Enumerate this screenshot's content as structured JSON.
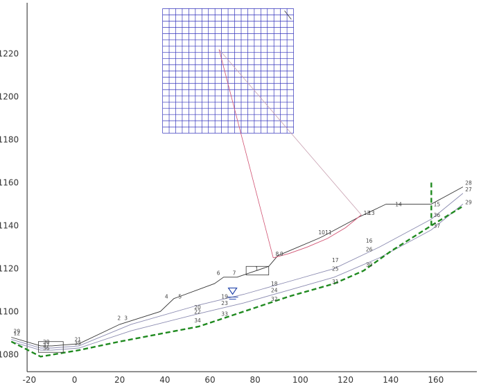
{
  "chart_data": {
    "type": "line",
    "title": "",
    "xlabel": "",
    "ylabel": "",
    "x_ticks": [
      "-20",
      "0",
      "20",
      "40",
      "60",
      "80",
      "100",
      "120",
      "140",
      "160"
    ],
    "y_ticks": [
      "1080",
      "1100",
      "1120",
      "1140",
      "1160",
      "1180",
      "1200",
      "1220"
    ],
    "xlim": [
      -33,
      180
    ],
    "ylim": [
      1063,
      1245
    ],
    "grid": false,
    "colors": {
      "ground": "#333333",
      "layer": "#8a8ab0",
      "slip": "#d05070",
      "radius": "#c8a0b0",
      "grid": "#3333bb",
      "bedrock": "#1f8a1f",
      "water": "#2244aa"
    },
    "series": [
      {
        "kind": "ground",
        "x": [
          -28,
          -15,
          -10,
          2,
          20,
          38,
          44,
          62,
          66,
          72,
          86,
          90,
          108,
          110,
          126,
          130,
          138,
          146,
          158,
          172
        ],
        "y": [
          1088,
          1084,
          1084,
          1085,
          1094,
          1100,
          1106,
          1113,
          1116,
          1116,
          1121,
          1126,
          1134,
          1135,
          1144,
          1146,
          1150,
          1150,
          1150,
          1158
        ]
      },
      {
        "kind": "layer",
        "x": [
          -28,
          -15,
          -10,
          2,
          25,
          55,
          75,
          95,
          115,
          135,
          158,
          172
        ],
        "y": [
          1087,
          1083,
          1083,
          1084,
          1094,
          1103,
          1108,
          1114,
          1120,
          1130,
          1143,
          1155
        ]
      },
      {
        "kind": "layer",
        "x": [
          -28,
          -15,
          -10,
          2,
          25,
          55,
          75,
          95,
          115,
          135,
          158,
          172
        ],
        "y": [
          1086,
          1082,
          1082,
          1083,
          1091,
          1099,
          1104,
          1110,
          1116,
          1125,
          1138,
          1150
        ]
      },
      {
        "kind": "bedrock",
        "x": [
          -28,
          -15,
          2,
          20,
          40,
          55,
          75,
          95,
          115,
          128,
          140,
          158,
          172
        ],
        "y": [
          1086,
          1079,
          1082,
          1086,
          1090,
          1093,
          1100,
          1107,
          1113,
          1119,
          1128,
          1140,
          1149
        ]
      },
      {
        "kind": "slip",
        "x": [
          88,
          95,
          103,
          112,
          120,
          127
        ],
        "y": [
          1125,
          1127,
          1130,
          1134,
          1139,
          1145
        ]
      }
    ],
    "search_grid": {
      "x": [
        39,
        97
      ],
      "y": [
        1183,
        1241
      ],
      "cols": 20,
      "rows": 20
    },
    "center": [
      64,
      1222
    ],
    "labels": [
      {
        "text": "29",
        "x": -27,
        "y": 1090
      },
      {
        "text": "12",
        "x": -27,
        "y": 1089
      },
      {
        "text": "38",
        "x": -14,
        "y": 1085
      },
      {
        "text": "37",
        "x": -14,
        "y": 1083.5
      },
      {
        "text": "36",
        "x": -14,
        "y": 1082
      },
      {
        "text": "21",
        "x": 0,
        "y": 1086
      },
      {
        "text": "35",
        "x": 0,
        "y": 1084.5
      },
      {
        "text": "2",
        "x": 19,
        "y": 1096
      },
      {
        "text": "3",
        "x": 22,
        "y": 1096
      },
      {
        "text": "4",
        "x": 40,
        "y": 1106
      },
      {
        "text": "5",
        "x": 46,
        "y": 1106
      },
      {
        "text": "6",
        "x": 63,
        "y": 1117
      },
      {
        "text": "7",
        "x": 70,
        "y": 1117
      },
      {
        "text": "1",
        "x": 80,
        "y": 1119
      },
      {
        "text": "8",
        "x": 89,
        "y": 1126
      },
      {
        "text": "9",
        "x": 91,
        "y": 1126
      },
      {
        "text": "10",
        "x": 108,
        "y": 1136
      },
      {
        "text": "11",
        "x": 111,
        "y": 1136
      },
      {
        "text": "12",
        "x": 128,
        "y": 1145
      },
      {
        "text": "13",
        "x": 130,
        "y": 1145
      },
      {
        "text": "14",
        "x": 142,
        "y": 1149
      },
      {
        "text": "15",
        "x": 159,
        "y": 1149
      },
      {
        "text": "16",
        "x": 129,
        "y": 1132
      },
      {
        "text": "17",
        "x": 114,
        "y": 1123
      },
      {
        "text": "18",
        "x": 87,
        "y": 1112
      },
      {
        "text": "19",
        "x": 65,
        "y": 1106
      },
      {
        "text": "20",
        "x": 53,
        "y": 1101
      },
      {
        "text": "22",
        "x": 53,
        "y": 1099
      },
      {
        "text": "23",
        "x": 65,
        "y": 1103
      },
      {
        "text": "24",
        "x": 87,
        "y": 1109
      },
      {
        "text": "25",
        "x": 114,
        "y": 1119
      },
      {
        "text": "26",
        "x": 129,
        "y": 1128
      },
      {
        "text": "27",
        "x": 173,
        "y": 1156
      },
      {
        "text": "28",
        "x": 173,
        "y": 1159
      },
      {
        "text": "29",
        "x": 173,
        "y": 1150
      },
      {
        "text": "30",
        "x": 129,
        "y": 1121
      },
      {
        "text": "31",
        "x": 114,
        "y": 1113
      },
      {
        "text": "32",
        "x": 87,
        "y": 1105
      },
      {
        "text": "33",
        "x": 65,
        "y": 1098
      },
      {
        "text": "34",
        "x": 53,
        "y": 1095
      },
      {
        "text": "36",
        "x": 159,
        "y": 1144
      },
      {
        "text": "37",
        "x": 159,
        "y": 1139
      }
    ]
  }
}
